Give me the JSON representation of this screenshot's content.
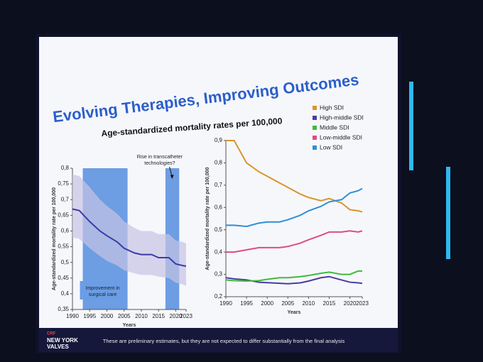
{
  "slide": {
    "title": "Evolving Therapies, Improving Outcomes",
    "subtitle": "Age-standardized mortality rates per 100,000",
    "footer": "These are preliminary estimates, but they are not expected to differ substantially from the final analysis",
    "logo": {
      "brand": "CRF",
      "line1": "NEW YORK",
      "line2": "VALVES"
    }
  },
  "chart_data": [
    {
      "type": "line",
      "y_label": "Age-standardized mortality rate per 100,000",
      "x_label": "Years",
      "x": [
        1990,
        1992,
        1995,
        1998,
        2000,
        2003,
        2005,
        2008,
        2010,
        2013,
        2015,
        2018,
        2020,
        2022,
        2023
      ],
      "series": [
        {
          "color": "#3b3aa8",
          "values": [
            0.67,
            0.665,
            0.63,
            0.6,
            0.585,
            0.565,
            0.545,
            0.53,
            0.525,
            0.525,
            0.515,
            0.515,
            0.495,
            0.49,
            0.488
          ],
          "upper": [
            0.78,
            0.775,
            0.74,
            0.7,
            0.68,
            0.655,
            0.63,
            0.61,
            0.6,
            0.6,
            0.59,
            0.59,
            0.57,
            0.565,
            0.56
          ],
          "lower": [
            0.58,
            0.575,
            0.545,
            0.52,
            0.505,
            0.49,
            0.475,
            0.465,
            0.46,
            0.46,
            0.455,
            0.45,
            0.435,
            0.43,
            0.425
          ],
          "band_color": "#c7c3e6"
        }
      ],
      "highlights": [
        {
          "from": 1993,
          "to": 2006
        },
        {
          "from": 2017,
          "to": 2021
        }
      ],
      "highlight_color": "#3f7fd9",
      "annotations": [
        {
          "lines": [
            "Improvement in",
            "surgical care"
          ]
        },
        {
          "lines": [
            "Rise in transcatheter",
            "technologies?"
          ]
        }
      ],
      "xlim": [
        1990,
        2023
      ],
      "xticks": [
        1990,
        1995,
        2000,
        2005,
        2010,
        2015,
        2020,
        2023
      ],
      "ylim": [
        0.35,
        0.8
      ],
      "yticks": [
        {
          "value": 0.35,
          "label": "0,35"
        },
        {
          "value": 0.4,
          "label": "0,4"
        },
        {
          "value": 0.45,
          "label": "0,45"
        },
        {
          "value": 0.5,
          "label": "0,5"
        },
        {
          "value": 0.55,
          "label": "0,55"
        },
        {
          "value": 0.6,
          "label": "0,6"
        },
        {
          "value": 0.65,
          "label": "0,65"
        },
        {
          "value": 0.7,
          "label": "0,7"
        },
        {
          "value": 0.75,
          "label": "0,75"
        },
        {
          "value": 0.8,
          "label": "0,8"
        }
      ]
    },
    {
      "type": "line",
      "y_label": "Age-standardized mortality rate per 100,000",
      "x_label": "Years",
      "x": [
        1990,
        1992,
        1995,
        1998,
        2000,
        2003,
        2005,
        2008,
        2010,
        2013,
        2015,
        2018,
        2020,
        2022,
        2023
      ],
      "series": [
        {
          "name": "High SDI",
          "color": "#d9952f",
          "values": [
            0.9,
            0.9,
            0.8,
            0.76,
            0.74,
            0.71,
            0.69,
            0.66,
            0.645,
            0.63,
            0.64,
            0.62,
            0.59,
            0.585,
            0.58
          ]
        },
        {
          "name": "High-middle SDI",
          "color": "#4b3aa6",
          "values": [
            0.285,
            0.28,
            0.275,
            0.265,
            0.263,
            0.26,
            0.258,
            0.262,
            0.27,
            0.285,
            0.29,
            0.275,
            0.265,
            0.262,
            0.26
          ]
        },
        {
          "name": "Middle SDI",
          "color": "#3dbb3d",
          "values": [
            0.275,
            0.272,
            0.27,
            0.272,
            0.278,
            0.285,
            0.285,
            0.29,
            0.295,
            0.305,
            0.31,
            0.3,
            0.3,
            0.315,
            0.315
          ]
        },
        {
          "name": "Low-middle SDI",
          "color": "#e04b7f",
          "values": [
            0.4,
            0.4,
            0.41,
            0.42,
            0.42,
            0.42,
            0.425,
            0.44,
            0.455,
            0.475,
            0.49,
            0.49,
            0.495,
            0.49,
            0.495
          ]
        },
        {
          "name": "Low SDI",
          "color": "#2f8fd3",
          "values": [
            0.52,
            0.52,
            0.515,
            0.53,
            0.535,
            0.535,
            0.545,
            0.565,
            0.585,
            0.605,
            0.625,
            0.635,
            0.665,
            0.675,
            0.685
          ]
        }
      ],
      "legend": "top right",
      "xlim": [
        1990,
        2023
      ],
      "xticks": [
        1990,
        1995,
        2000,
        2005,
        2010,
        2015,
        2020,
        2023
      ],
      "ylim": [
        0.2,
        0.9
      ],
      "yticks": [
        {
          "value": 0.2,
          "label": "0,2"
        },
        {
          "value": 0.3,
          "label": "0,3"
        },
        {
          "value": 0.4,
          "label": "0,4"
        },
        {
          "value": 0.5,
          "label": "0,5"
        },
        {
          "value": 0.6,
          "label": "0,6"
        },
        {
          "value": 0.7,
          "label": "0,7"
        },
        {
          "value": 0.8,
          "label": "0,8"
        },
        {
          "value": 0.9,
          "label": "0,9"
        }
      ]
    }
  ]
}
